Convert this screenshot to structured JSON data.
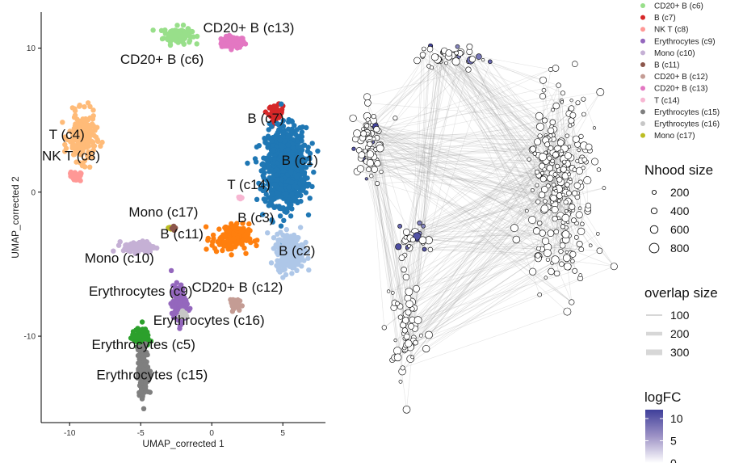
{
  "chart_data": [
    {
      "type": "scatter",
      "xlabel": "UMAP_corrected 1",
      "ylabel": "UMAP_corrected 2",
      "xlim": [
        -12,
        8
      ],
      "ylim": [
        -16,
        12.5
      ],
      "x_ticks": [
        -10,
        -5,
        0,
        5
      ],
      "y_ticks": [
        10,
        0,
        -10
      ],
      "x_tick_labels": [
        "-10",
        "-5",
        "0",
        "5"
      ],
      "y_tick_labels": [
        "10",
        "0",
        "-10"
      ],
      "grid": false,
      "clusters": [
        {
          "label": "CD20+ B (c13)",
          "color": "#e377c2",
          "center": [
            1.5,
            10.4
          ],
          "spread": [
            0.75,
            0.35
          ],
          "n": 120,
          "label_pos": [
            2.6,
            11.1
          ]
        },
        {
          "label": "CD20+ B (c6)",
          "color": "#98df8a",
          "center": [
            -2.4,
            10.9
          ],
          "spread": [
            0.9,
            0.55
          ],
          "n": 110,
          "label_pos": [
            -3.5,
            8.9
          ]
        },
        {
          "label": "B (c7)",
          "color": "#d62728",
          "center": [
            4.5,
            5.5
          ],
          "spread": [
            0.45,
            0.5
          ],
          "n": 60,
          "label_pos": [
            3.8,
            4.8
          ]
        },
        {
          "label": "B (c1)",
          "color": "#1f77b4",
          "center": [
            5.2,
            1.8
          ],
          "spread": [
            1.3,
            2.4
          ],
          "n": 900,
          "label_pos": [
            6.2,
            1.9
          ]
        },
        {
          "label": "T (c4)",
          "color": "#ffbb78",
          "center": [
            -9.1,
            3.8
          ],
          "spread": [
            0.85,
            1.5
          ],
          "n": 230,
          "label_pos": [
            -10.2,
            3.7
          ]
        },
        {
          "label": "NK T (c8)",
          "color": "#ff9896",
          "center": [
            -9.6,
            1.1
          ],
          "spread": [
            0.35,
            0.3
          ],
          "n": 30,
          "label_pos": [
            -9.9,
            2.2
          ]
        },
        {
          "label": "T (c14)",
          "color": "#f7b6d2",
          "center": [
            2.0,
            -0.35
          ],
          "spread": [
            0.15,
            0.15
          ],
          "n": 10,
          "label_pos": [
            2.6,
            0.2
          ]
        },
        {
          "label": "B (c3)",
          "color": "#ff7f0e",
          "center": [
            1.3,
            -3.2
          ],
          "spread": [
            1.2,
            0.9
          ],
          "n": 140,
          "label_pos": [
            3.1,
            -2.1
          ]
        },
        {
          "label": "Mono (c17)",
          "color": "#bcbd22",
          "center": [
            -2.9,
            -2.5
          ],
          "spread": [
            0.15,
            0.12
          ],
          "n": 10,
          "label_pos": [
            -3.4,
            -1.7
          ]
        },
        {
          "label": "B (c11)",
          "color": "#8c564b",
          "center": [
            -2.6,
            -2.5
          ],
          "spread": [
            0.15,
            0.12
          ],
          "n": 10,
          "label_pos": [
            -2.1,
            -3.2
          ]
        },
        {
          "label": "Mono (c10)",
          "color": "#c5b0d5",
          "center": [
            -5.1,
            -3.8
          ],
          "spread": [
            1.0,
            0.35
          ],
          "n": 110,
          "label_pos": [
            -6.5,
            -4.9
          ]
        },
        {
          "label": "B (c2)",
          "color": "#aec7e8",
          "center": [
            5.5,
            -4.1
          ],
          "spread": [
            0.85,
            1.1
          ],
          "n": 320,
          "label_pos": [
            6.0,
            -4.4
          ]
        },
        {
          "label": "Erythrocytes (c9)",
          "color": "#9467bd",
          "center": [
            -2.3,
            -7.8
          ],
          "spread": [
            0.5,
            1.2
          ],
          "n": 130,
          "label_pos": [
            -5.0,
            -7.2
          ]
        },
        {
          "label": "CD20+ B (c12)",
          "color": "#c49c94",
          "center": [
            1.5,
            -7.7
          ],
          "spread": [
            0.35,
            0.35
          ],
          "n": 30,
          "label_pos": [
            1.8,
            -6.9
          ]
        },
        {
          "label": "Erythrocytes (c16)",
          "color": "#c7c7c7",
          "center": [
            -2.0,
            -8.5
          ],
          "spread": [
            0.25,
            0.3
          ],
          "n": 15,
          "label_pos": [
            -0.2,
            -9.2
          ]
        },
        {
          "label": "Erythrocytes (c5)",
          "color": "#2ca02c",
          "center": [
            -5.0,
            -10.1
          ],
          "spread": [
            0.55,
            0.55
          ],
          "n": 100,
          "label_pos": [
            -4.8,
            -10.9
          ]
        },
        {
          "label": "Erythrocytes (c15)",
          "color": "#7f7f7f",
          "center": [
            -4.8,
            -12.5
          ],
          "spread": [
            0.35,
            1.5
          ],
          "n": 180,
          "label_pos": [
            -4.2,
            -13.0
          ]
        }
      ]
    },
    {
      "type": "scatter",
      "description_kind": "neighbourhood graph",
      "xlim": [
        0,
        100
      ],
      "ylim": [
        0,
        100
      ],
      "nhood_size_legend": {
        "title": "Nhood size",
        "values": [
          200,
          400,
          600,
          800
        ]
      },
      "overlap_size_legend": {
        "title": "overlap size",
        "values": [
          100,
          200,
          300
        ]
      },
      "logfc_legend": {
        "title": "logFC",
        "ticks": [
          10,
          5,
          0
        ],
        "tick_labels": [
          "10",
          "5",
          "0"
        ],
        "range": [
          0,
          12
        ],
        "color_low": "#ffffff",
        "color_high": "#3f3f9a"
      },
      "graph_regions": [
        {
          "name": "top",
          "center": [
            35,
            93
          ],
          "spread": [
            14,
            3
          ],
          "n": 45,
          "logfc_frac": 0.25
        },
        {
          "name": "left",
          "center": [
            8,
            70
          ],
          "spread": [
            5,
            10
          ],
          "n": 70,
          "logfc_frac": 0.1
        },
        {
          "name": "right",
          "center": [
            78,
            58
          ],
          "spread": [
            12,
            24
          ],
          "n": 260,
          "logfc_frac": 0.0
        },
        {
          "name": "mid",
          "center": [
            24,
            44
          ],
          "spread": [
            6,
            4
          ],
          "n": 25,
          "logfc_frac": 0.35
        },
        {
          "name": "bottom",
          "center": [
            22,
            20
          ],
          "spread": [
            6,
            14
          ],
          "n": 60,
          "logfc_frac": 0.0
        }
      ]
    }
  ],
  "legend_items": [
    {
      "label": "CD20+ B (c6)",
      "color": "#98df8a"
    },
    {
      "label": "B (c7)",
      "color": "#d62728"
    },
    {
      "label": "NK T (c8)",
      "color": "#ff9896"
    },
    {
      "label": "Erythrocytes (c9)",
      "color": "#9467bd"
    },
    {
      "label": "Mono (c10)",
      "color": "#c5b0d5"
    },
    {
      "label": "B (c11)",
      "color": "#8c564b"
    },
    {
      "label": "CD20+ B (c12)",
      "color": "#c49c94"
    },
    {
      "label": "CD20+ B (c13)",
      "color": "#e377c2"
    },
    {
      "label": "T (c14)",
      "color": "#f7b6d2"
    },
    {
      "label": "Erythrocytes (c15)",
      "color": "#7f7f7f"
    },
    {
      "label": "Erythrocytes (c16)",
      "color": "#c7c7c7"
    },
    {
      "label": "Mono (c17)",
      "color": "#bcbd22"
    }
  ]
}
